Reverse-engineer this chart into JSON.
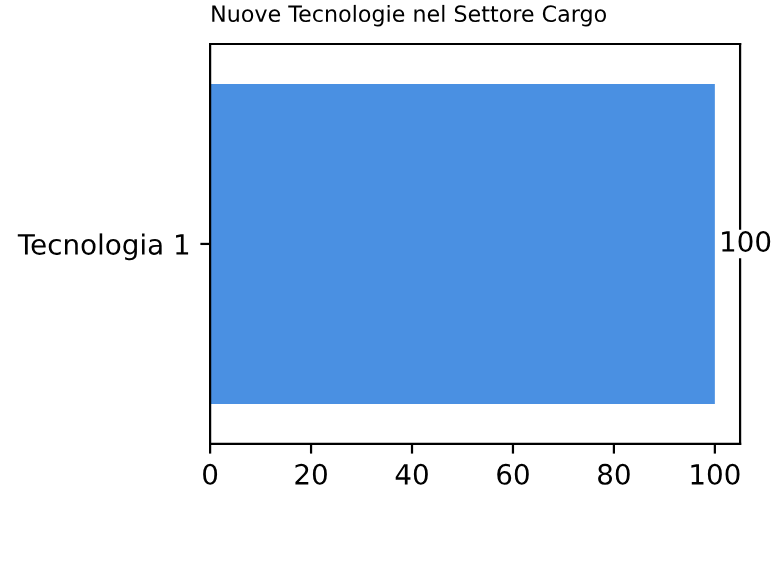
{
  "chart_data": {
    "type": "bar",
    "orientation": "horizontal",
    "title": "Nuove Tecnologie nel Settore Cargo",
    "categories": [
      "Tecnologia 1"
    ],
    "values": [
      100
    ],
    "value_labels": [
      "100"
    ],
    "color": "#4a90e2",
    "xlim": [
      0,
      105
    ],
    "xticks": [
      0,
      20,
      40,
      60,
      80,
      100
    ],
    "grid": false
  }
}
